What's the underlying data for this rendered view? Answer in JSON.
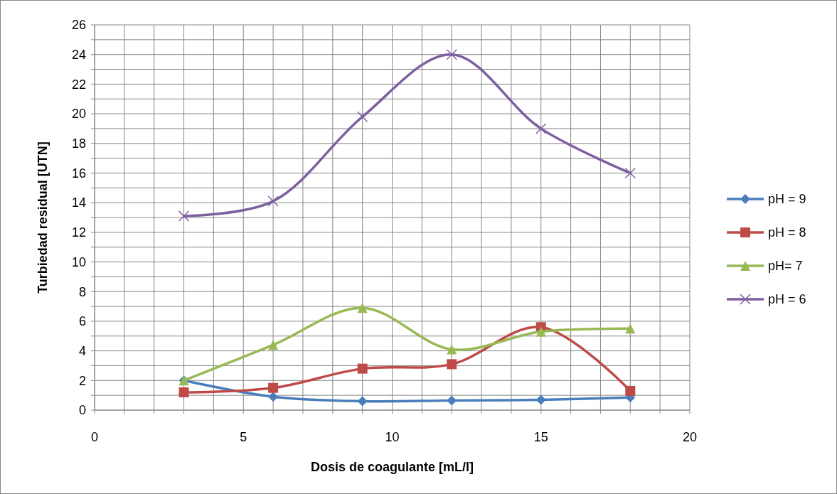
{
  "chart_data": {
    "type": "line",
    "xlabel": "Dosis de coagulante [mL/l]",
    "ylabel": "Turbiedad residual [UTN]",
    "x": [
      3,
      6,
      9,
      12,
      15,
      18
    ],
    "series": [
      {
        "name": "pH = 9",
        "color": "#4a7ebb",
        "marker": "diamond",
        "values": [
          2.0,
          0.9,
          0.6,
          0.65,
          0.7,
          0.85
        ]
      },
      {
        "name": "pH = 8",
        "color": "#be4b48",
        "marker": "square",
        "values": [
          1.2,
          1.5,
          2.8,
          3.1,
          5.6,
          1.3
        ]
      },
      {
        "name": "pH= 7",
        "color": "#98b954",
        "marker": "triangle",
        "values": [
          2.0,
          4.4,
          6.9,
          4.1,
          5.3,
          5.5
        ]
      },
      {
        "name": "pH = 6",
        "color": "#7d60a0",
        "marker": "cross",
        "values": [
          13.1,
          14.1,
          19.8,
          24.0,
          19.0,
          16.0
        ]
      }
    ],
    "xlim": [
      0,
      20
    ],
    "xticks": [
      0,
      {
        "value": 1,
        "label": null
      },
      {
        "value": 2,
        "label": null
      },
      {
        "value": 3,
        "label": null
      },
      {
        "value": 4,
        "label": null
      },
      5,
      {
        "value": 6,
        "label": null
      },
      {
        "value": 7,
        "label": null
      },
      {
        "value": 8,
        "label": null
      },
      {
        "value": 9,
        "label": null
      },
      10,
      {
        "value": 11,
        "label": null
      },
      {
        "value": 12,
        "label": null
      },
      {
        "value": 13,
        "label": null
      },
      {
        "value": 14,
        "label": null
      },
      15,
      {
        "value": 16,
        "label": null
      },
      {
        "value": 17,
        "label": null
      },
      {
        "value": 18,
        "label": null
      },
      {
        "value": 19,
        "label": null
      },
      20
    ],
    "ylim": [
      0,
      26
    ],
    "yticks": [
      0,
      {
        "value": 1,
        "label": null
      },
      2,
      {
        "value": 3,
        "label": null
      },
      4,
      {
        "value": 5,
        "label": null
      },
      6,
      {
        "value": 7,
        "label": null
      },
      8,
      {
        "value": 9,
        "label": null
      },
      10,
      {
        "value": 11,
        "label": null
      },
      12,
      {
        "value": 13,
        "label": null
      },
      14,
      {
        "value": 15,
        "label": null
      },
      16,
      {
        "value": 17,
        "label": null
      },
      18,
      {
        "value": 19,
        "label": null
      },
      20,
      {
        "value": 21,
        "label": null
      },
      22,
      {
        "value": 23,
        "label": null
      },
      24,
      {
        "value": 25,
        "label": null
      },
      26
    ],
    "grid": true,
    "legend": "right",
    "line_style": "solid"
  }
}
